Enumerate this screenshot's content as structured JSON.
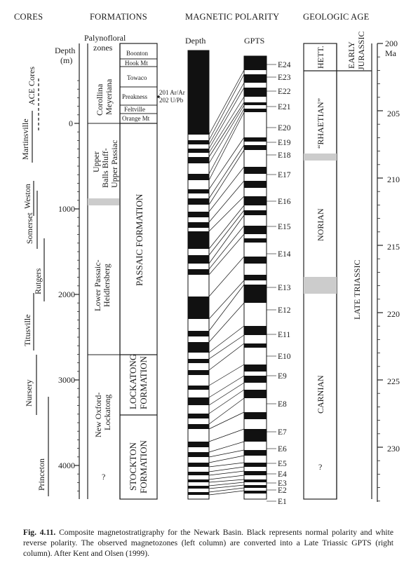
{
  "headers": {
    "cores": "CORES",
    "formations": "FORMATIONS",
    "magnetic_polarity": "MAGNETIC POLARITY",
    "geologic_age": "GEOLOGIC AGE"
  },
  "cores": {
    "group_label": "ACE Cores",
    "items": [
      "Martinsville",
      "Weston",
      "Somerset",
      "Rutgers",
      "Titusville",
      "Nursery",
      "Princeton"
    ]
  },
  "depth_axis": {
    "label_line1": "Depth",
    "label_line2": "(m)",
    "ticks": [
      "0",
      "1000",
      "2000",
      "3000",
      "4000"
    ]
  },
  "formations": {
    "palynofloral_header_line1": "Palynofloral",
    "palynofloral_header_line2": "zones",
    "zones": [
      {
        "line1": "Corollina",
        "line2": "Meyeriana"
      },
      {
        "line1": "Upper",
        "line2": "Balls Bluff-",
        "line3": "Upper Passiac"
      },
      {
        "line1": "Lower Passaic-",
        "line2": "Heidlersberg"
      },
      {
        "line1": "New Oxford-",
        "line2": "Lockatong"
      },
      {
        "line1": "?"
      }
    ],
    "upper_units": [
      "Boonton",
      "Hook Mt",
      "Towaco",
      "Preakness",
      "Feltville",
      "Orange Mt"
    ],
    "main_units": [
      {
        "line1": "PASSAIC FORMATION"
      },
      {
        "line1": "LOCKATONG",
        "line2": "FORMATION"
      },
      {
        "line1": "STOCKTON",
        "line2": "FORMATION"
      }
    ],
    "radiometric_1": "201 Ar/Ar",
    "radiometric_2": "202 U/Pb"
  },
  "polarity": {
    "depth_label": "Depth",
    "gpts_label": "GPTS",
    "zones": [
      "E24",
      "E23",
      "E22",
      "E21",
      "E20",
      "E19",
      "E18",
      "E17",
      "E16",
      "E15",
      "E14",
      "E13",
      "E12",
      "E11",
      "E10",
      "E9",
      "E8",
      "E7",
      "E6",
      "E5",
      "E4",
      "E3",
      "E2",
      "E1"
    ]
  },
  "geologic_age": {
    "hett": "HETT.",
    "early_jurassic_line1": "EARLY",
    "early_jurassic_line2": "JURASSIC",
    "rhaetian": "“RHAETIAN”",
    "norian": "NORIAN",
    "carnian": "CARNIAN",
    "question": "?",
    "late_triassic": "LATE TRIASSIC"
  },
  "age_axis": {
    "top_label": "200",
    "unit": "Ma",
    "ticks": [
      "205",
      "210",
      "215",
      "220",
      "225",
      "230"
    ]
  },
  "caption": {
    "figure_label": "Fig. 4.11.",
    "text": "Composite magnetostratigraphy for the Newark Basin. Black represents normal polarity and white reverse polarity. The observed magnetozones (left column) are converted into a Late Triassic GPTS (right column). After Kent and Olsen (1999)."
  }
}
